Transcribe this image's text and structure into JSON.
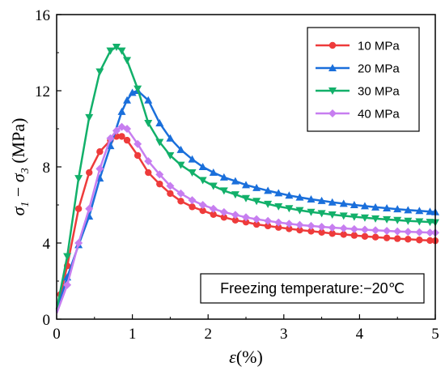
{
  "chart_data": {
    "type": "line",
    "xlabel_symbol": "ε",
    "xlabel_unit": "(%)",
    "ylabel_sym1": "σ",
    "ylabel_sub1": "1",
    "ylabel_minus": " − ",
    "ylabel_sym2": "σ",
    "ylabel_sub2": "3",
    "ylabel_unit": " (MPa)",
    "xlim": [
      0,
      5
    ],
    "ylim": [
      0,
      16
    ],
    "xticks": [
      "0",
      "1",
      "2",
      "3",
      "4",
      "5"
    ],
    "yticks": [
      "0",
      "4",
      "8",
      "12",
      "16"
    ],
    "grid": false,
    "legend_position": "top-right",
    "annotation": "Freezing temperature:−20℃",
    "series": [
      {
        "name": "10 MPa",
        "color": "#ee3b3b",
        "marker": "circle",
        "x": [
          0,
          0.05,
          0.14,
          0.29,
          0.43,
          0.57,
          0.71,
          0.79,
          0.86,
          0.93,
          1.07,
          1.21,
          1.36,
          1.5,
          1.64,
          1.79,
          1.93,
          2.07,
          2.21,
          2.36,
          2.5,
          2.64,
          2.79,
          2.93,
          3.07,
          3.21,
          3.36,
          3.5,
          3.64,
          3.79,
          3.93,
          4.07,
          4.21,
          4.36,
          4.5,
          4.64,
          4.79,
          4.93,
          5.0
        ],
        "y": [
          0.5,
          1.3,
          2.8,
          5.8,
          7.7,
          8.8,
          9.4,
          9.6,
          9.6,
          9.4,
          8.6,
          7.7,
          7.1,
          6.6,
          6.2,
          5.9,
          5.7,
          5.5,
          5.35,
          5.2,
          5.1,
          4.98,
          4.9,
          4.82,
          4.75,
          4.68,
          4.62,
          4.56,
          4.5,
          4.45,
          4.4,
          4.35,
          4.31,
          4.27,
          4.23,
          4.2,
          4.16,
          4.13,
          4.12
        ]
      },
      {
        "name": "20 MPa",
        "color": "#1a6fdb",
        "marker": "triangle",
        "x": [
          0,
          0.14,
          0.29,
          0.43,
          0.57,
          0.71,
          0.86,
          0.93,
          1.0,
          1.07,
          1.21,
          1.36,
          1.5,
          1.64,
          1.79,
          1.93,
          2.07,
          2.21,
          2.36,
          2.5,
          2.64,
          2.79,
          2.93,
          3.07,
          3.21,
          3.36,
          3.5,
          3.64,
          3.79,
          3.93,
          4.07,
          4.21,
          4.36,
          4.5,
          4.64,
          4.79,
          4.93,
          5.0
        ],
        "y": [
          0.4,
          2.2,
          3.9,
          5.4,
          7.4,
          9.1,
          10.9,
          11.5,
          11.9,
          12.0,
          11.5,
          10.3,
          9.5,
          8.9,
          8.4,
          8.0,
          7.7,
          7.45,
          7.25,
          7.05,
          6.9,
          6.75,
          6.62,
          6.5,
          6.4,
          6.3,
          6.22,
          6.14,
          6.07,
          6.0,
          5.94,
          5.88,
          5.83,
          5.78,
          5.73,
          5.69,
          5.65,
          5.63
        ]
      },
      {
        "name": "30 MPa",
        "color": "#12b06a",
        "marker": "triangle-down",
        "x": [
          0,
          0.14,
          0.29,
          0.43,
          0.57,
          0.71,
          0.79,
          0.86,
          0.93,
          1.07,
          1.21,
          1.36,
          1.5,
          1.64,
          1.79,
          1.93,
          2.07,
          2.21,
          2.36,
          2.5,
          2.64,
          2.79,
          2.93,
          3.07,
          3.21,
          3.36,
          3.5,
          3.64,
          3.79,
          3.93,
          4.07,
          4.21,
          4.36,
          4.5,
          4.64,
          4.79,
          4.93,
          5.0
        ],
        "y": [
          0.5,
          3.3,
          7.4,
          10.6,
          13.0,
          14.1,
          14.3,
          14.1,
          13.6,
          12.1,
          10.3,
          9.3,
          8.6,
          8.1,
          7.7,
          7.3,
          7.0,
          6.75,
          6.55,
          6.35,
          6.2,
          6.05,
          5.92,
          5.82,
          5.72,
          5.63,
          5.56,
          5.49,
          5.43,
          5.38,
          5.33,
          5.28,
          5.24,
          5.2,
          5.16,
          5.13,
          5.1,
          5.08
        ]
      },
      {
        "name": "40 MPa",
        "color": "#c77ef0",
        "marker": "diamond",
        "x": [
          0,
          0.14,
          0.29,
          0.43,
          0.57,
          0.71,
          0.79,
          0.86,
          0.93,
          1.07,
          1.21,
          1.36,
          1.5,
          1.64,
          1.79,
          1.93,
          2.07,
          2.21,
          2.36,
          2.5,
          2.64,
          2.79,
          2.93,
          3.07,
          3.21,
          3.36,
          3.5,
          3.64,
          3.79,
          3.93,
          4.07,
          4.21,
          4.36,
          4.5,
          4.64,
          4.79,
          4.93,
          5.0
        ],
        "y": [
          0.3,
          1.8,
          4.0,
          5.8,
          7.9,
          9.5,
          9.9,
          10.1,
          10.0,
          9.2,
          8.3,
          7.6,
          7.0,
          6.6,
          6.25,
          6.0,
          5.8,
          5.62,
          5.48,
          5.35,
          5.25,
          5.16,
          5.08,
          5.01,
          4.95,
          4.9,
          4.85,
          4.81,
          4.77,
          4.73,
          4.7,
          4.67,
          4.64,
          4.61,
          4.59,
          4.57,
          4.55,
          4.54
        ]
      }
    ]
  }
}
